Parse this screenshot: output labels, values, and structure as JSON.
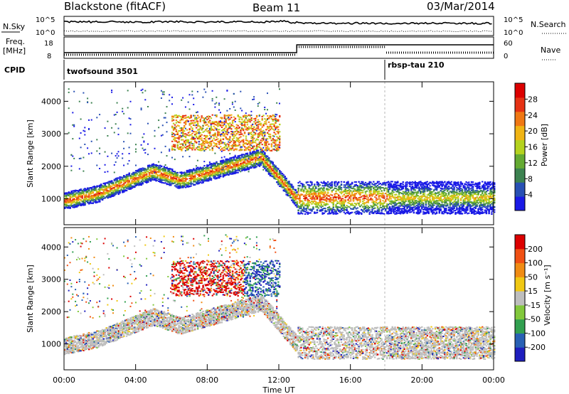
{
  "header": {
    "station": "Blackstone (fitACF)",
    "beam": "Beam 11",
    "date": "03/Mar/2014"
  },
  "summary_panels": {
    "noise": {
      "left_label": "N.Sky",
      "right_label": "N.Search",
      "left_ticks": [
        "10^5",
        "10^0"
      ],
      "right_ticks": [
        "10^5",
        "10^0"
      ]
    },
    "freq": {
      "left_label_1": "Freq.",
      "left_label_2": "[MHz]",
      "right_label": "Nave",
      "left_ticks": [
        "18",
        "8"
      ],
      "right_ticks": [
        "60",
        "0"
      ]
    },
    "cpid": {
      "label": "CPID",
      "segments": [
        {
          "name": "twofsound 3501",
          "start_h": 0,
          "end_h": 18
        },
        {
          "name": "rbsp-tau 210",
          "start_h": 18,
          "end_h": 24
        }
      ]
    }
  },
  "chart_data": [
    {
      "type": "heatmap",
      "title": "",
      "xlabel": "Time UT",
      "ylabel": "Slant Range [km]",
      "x_range_h": [
        0,
        24
      ],
      "ylim": [
        200,
        4600
      ],
      "x_ticks": [
        "00:00",
        "04:00",
        "08:00",
        "12:00",
        "16:00",
        "20:00",
        "00:00"
      ],
      "y_ticks": [
        1000,
        2000,
        3000,
        4000
      ],
      "colorbar": {
        "label": "Power [dB]",
        "ticks": [
          4,
          8,
          12,
          16,
          20,
          24,
          28
        ],
        "range": [
          0,
          32
        ],
        "colors": [
          "#1a1ae6",
          "#2850b4",
          "#3c8250",
          "#64aa32",
          "#b4d21e",
          "#f0b414",
          "#f07814",
          "#e63214",
          "#dc0000"
        ]
      }
    },
    {
      "type": "heatmap",
      "title": "",
      "xlabel": "Time UT",
      "ylabel": "Slant Range [km]",
      "x_range_h": [
        0,
        24
      ],
      "ylim": [
        200,
        4600
      ],
      "x_ticks": [
        "00:00",
        "04:00",
        "08:00",
        "12:00",
        "16:00",
        "20:00",
        "00:00"
      ],
      "y_ticks": [
        1000,
        2000,
        3000,
        4000
      ],
      "colorbar": {
        "label": "Velocity [m s⁻¹]",
        "ticks": [
          "200",
          "100",
          "50",
          "15",
          "-15",
          "-50",
          "-100",
          "-200"
        ],
        "colors": [
          "#1e1ebe",
          "#2860b4",
          "#32a050",
          "#82c83c",
          "#bebebe",
          "#f0c814",
          "#f08c14",
          "#f05014",
          "#dc0000"
        ]
      }
    }
  ]
}
